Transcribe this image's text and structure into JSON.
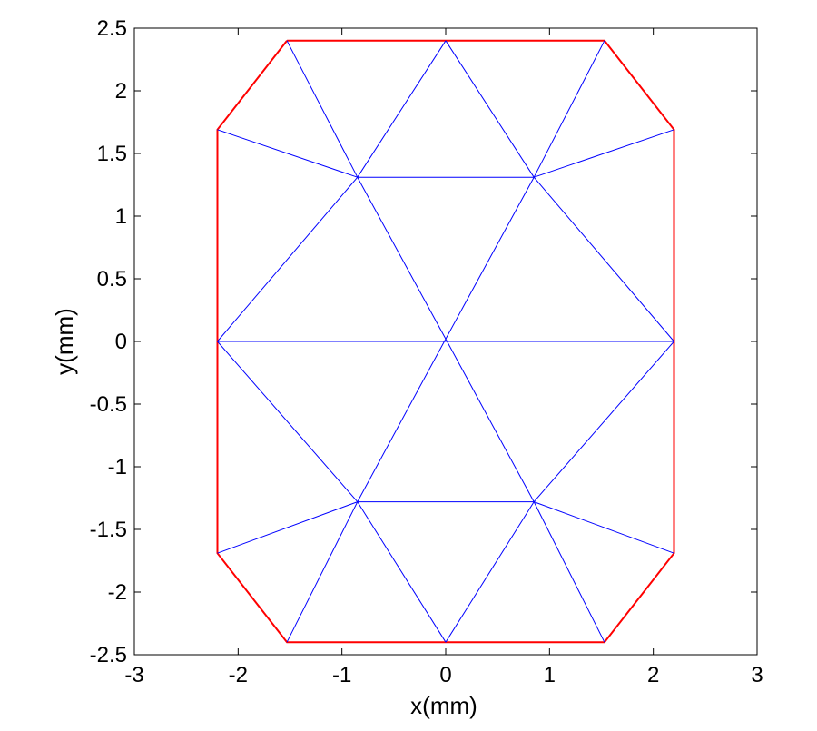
{
  "chart_data": {
    "type": "line",
    "title": "",
    "xlabel": "x(mm)",
    "ylabel": "y(mm)",
    "xlim": [
      -3,
      3
    ],
    "ylim": [
      -2.5,
      2.5
    ],
    "xticks": [
      -3,
      -2,
      -1,
      0,
      1,
      2,
      3
    ],
    "yticks": [
      -2.5,
      -2,
      -1.5,
      -1,
      -0.5,
      0,
      0.5,
      1,
      1.5,
      2,
      2.5
    ],
    "xtick_labels": [
      "-3",
      "-2",
      "-1",
      "0",
      "1",
      "2",
      "3"
    ],
    "ytick_labels": [
      "-2.5",
      "-2",
      "-1.5",
      "-1",
      "-0.5",
      "0",
      "0.5",
      "1",
      "1.5",
      "2",
      "2.5"
    ],
    "grid": false,
    "legend": "none",
    "series": [
      {
        "color": "#ff0000",
        "x": [
          -1.53,
          1.53,
          2.2,
          2.2,
          1.53,
          -1.53,
          -2.2,
          -2.2,
          -1.53
        ],
        "y": [
          2.4,
          2.4,
          1.69,
          -1.69,
          -2.4,
          -2.4,
          -1.69,
          1.69,
          2.4
        ]
      },
      {
        "color": "#0000ff",
        "segments": [
          [
            [
              -1.53,
              2.4
            ],
            [
              -0.85,
              1.31
            ]
          ],
          [
            [
              0,
              2.4
            ],
            [
              -0.85,
              1.31
            ]
          ],
          [
            [
              0,
              2.4
            ],
            [
              0.85,
              1.31
            ]
          ],
          [
            [
              1.53,
              2.4
            ],
            [
              0.85,
              1.31
            ]
          ],
          [
            [
              -2.2,
              1.69
            ],
            [
              -0.85,
              1.31
            ]
          ],
          [
            [
              2.2,
              1.69
            ],
            [
              0.85,
              1.31
            ]
          ],
          [
            [
              -0.85,
              1.31
            ],
            [
              0.85,
              1.31
            ]
          ],
          [
            [
              -0.85,
              1.31
            ],
            [
              -2.2,
              0
            ]
          ],
          [
            [
              -0.85,
              1.31
            ],
            [
              0,
              0.02
            ]
          ],
          [
            [
              0.85,
              1.31
            ],
            [
              0,
              0.02
            ]
          ],
          [
            [
              0.85,
              1.31
            ],
            [
              2.2,
              0
            ]
          ],
          [
            [
              -2.2,
              0
            ],
            [
              2.2,
              0
            ]
          ],
          [
            [
              -2.2,
              0
            ],
            [
              -0.85,
              -1.28
            ]
          ],
          [
            [
              0,
              0.02
            ],
            [
              -0.85,
              -1.28
            ]
          ],
          [
            [
              0,
              0.02
            ],
            [
              0.85,
              -1.28
            ]
          ],
          [
            [
              2.2,
              0
            ],
            [
              0.85,
              -1.28
            ]
          ],
          [
            [
              -0.85,
              -1.28
            ],
            [
              0.85,
              -1.28
            ]
          ],
          [
            [
              -0.85,
              -1.28
            ],
            [
              -2.2,
              -1.69
            ]
          ],
          [
            [
              0.85,
              -1.28
            ],
            [
              2.2,
              -1.69
            ]
          ],
          [
            [
              -0.85,
              -1.28
            ],
            [
              -1.53,
              -2.4
            ]
          ],
          [
            [
              -0.85,
              -1.28
            ],
            [
              0,
              -2.4
            ]
          ],
          [
            [
              0.85,
              -1.28
            ],
            [
              0,
              -2.4
            ]
          ],
          [
            [
              0.85,
              -1.28
            ],
            [
              1.53,
              -2.4
            ]
          ]
        ]
      }
    ]
  }
}
